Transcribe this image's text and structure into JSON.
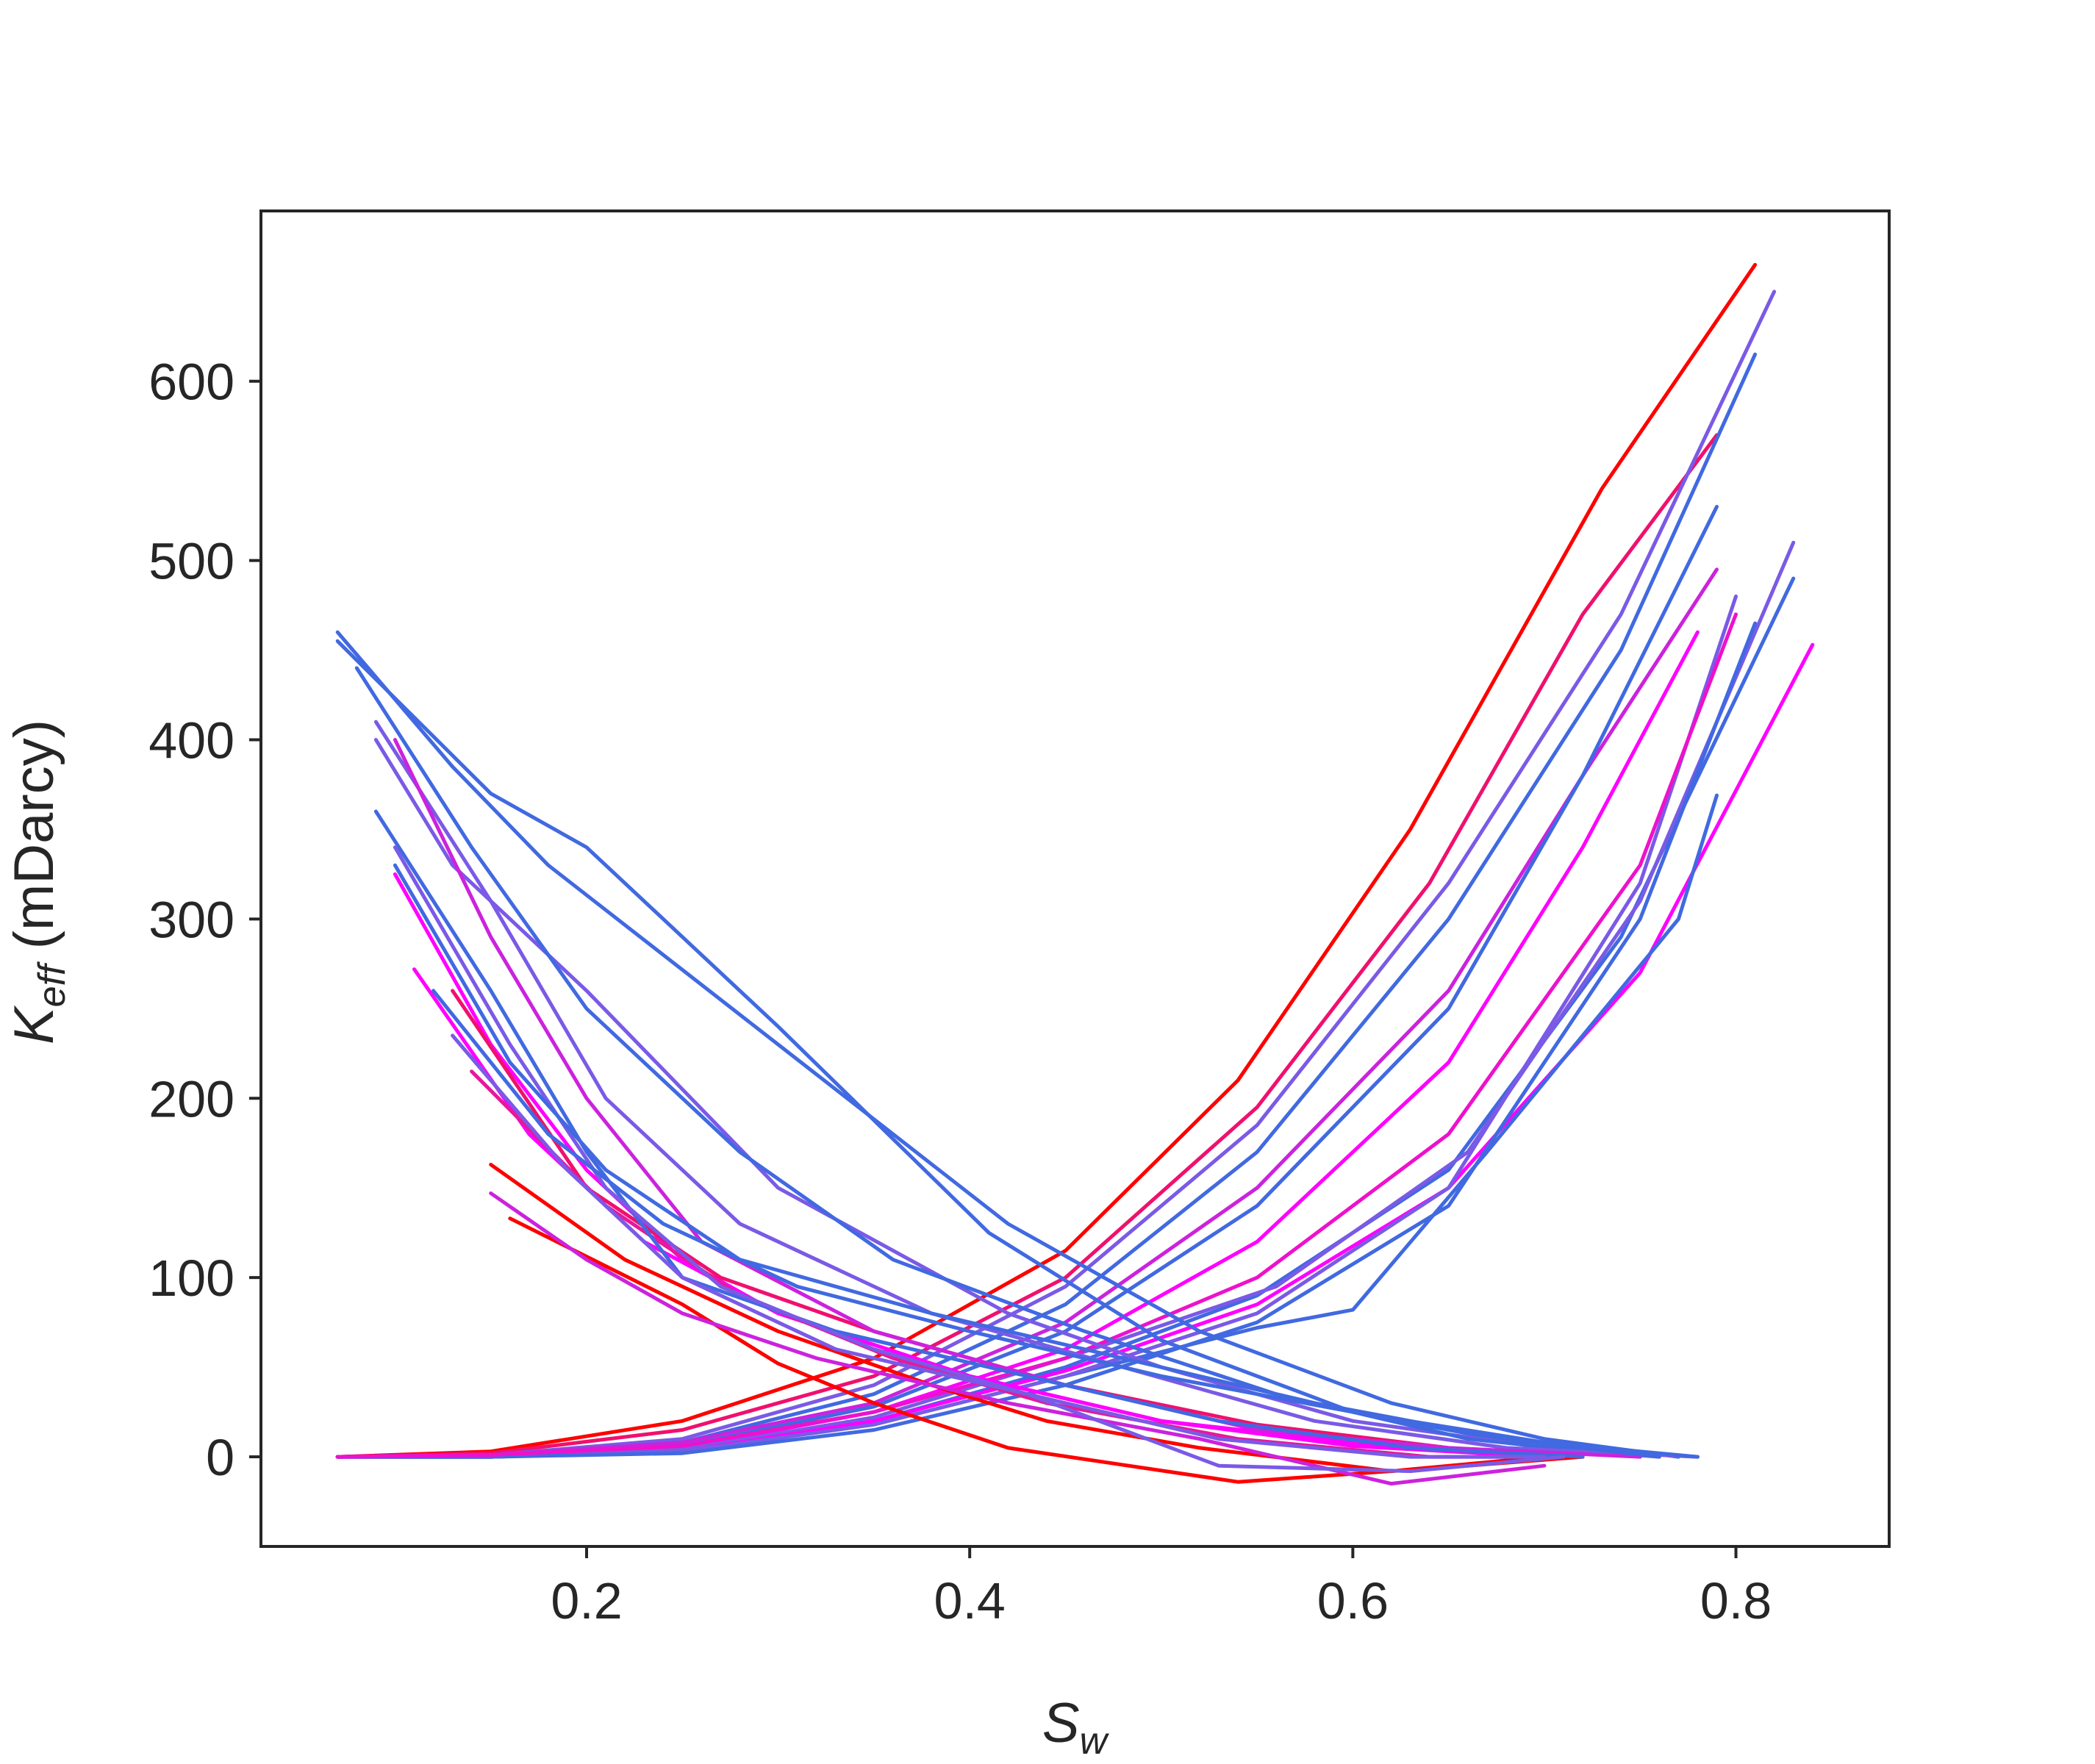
{
  "chart_data": {
    "type": "line",
    "title": "",
    "xlabel": {
      "main": "S",
      "sub": "w"
    },
    "ylabel": {
      "main": "K",
      "sub": "eff",
      "suffix": " (mDarcy)"
    },
    "xlim": [
      0.03,
      0.88
    ],
    "ylim": [
      -50,
      695
    ],
    "xticks": [
      0.2,
      0.4,
      0.6,
      0.8
    ],
    "xtick_labels": [
      "0.2",
      "0.4",
      "0.6",
      "0.8"
    ],
    "yticks": [
      0,
      100,
      200,
      300,
      400,
      500,
      600
    ],
    "ytick_labels": [
      "0",
      "100",
      "200",
      "300",
      "400",
      "500",
      "600"
    ],
    "grid": false,
    "legend": "none",
    "colors": {
      "red": "#ff0000",
      "magenta": "#ff00ff",
      "blue": "#4169e1",
      "violet": "#7a5ae6",
      "pink": "#e6199b",
      "axis": "#262626"
    },
    "series": [
      {
        "color": "#ff0000",
        "x": [
          0.07,
          0.15,
          0.25,
          0.35,
          0.45,
          0.54,
          0.63,
          0.73,
          0.81
        ],
        "y": [
          0,
          3,
          20,
          55,
          115,
          210,
          350,
          540,
          665
        ]
      },
      {
        "color": "#f0106e",
        "x": [
          0.07,
          0.15,
          0.25,
          0.35,
          0.45,
          0.55,
          0.64,
          0.72,
          0.79
        ],
        "y": [
          0,
          2,
          15,
          45,
          100,
          195,
          320,
          470,
          570
        ]
      },
      {
        "color": "#7a5ae6",
        "x": [
          0.07,
          0.15,
          0.25,
          0.35,
          0.45,
          0.55,
          0.65,
          0.74,
          0.82
        ],
        "y": [
          0,
          1,
          10,
          40,
          95,
          185,
          320,
          470,
          650
        ]
      },
      {
        "color": "#4169e1",
        "x": [
          0.07,
          0.15,
          0.25,
          0.35,
          0.45,
          0.55,
          0.65,
          0.74,
          0.81
        ],
        "y": [
          0,
          1,
          8,
          35,
          85,
          170,
          300,
          450,
          615
        ]
      },
      {
        "color": "#cc22dd",
        "x": [
          0.07,
          0.15,
          0.25,
          0.35,
          0.45,
          0.55,
          0.65,
          0.72,
          0.79
        ],
        "y": [
          0,
          1,
          8,
          30,
          75,
          150,
          260,
          380,
          495
        ]
      },
      {
        "color": "#4169e1",
        "x": [
          0.07,
          0.15,
          0.25,
          0.35,
          0.45,
          0.55,
          0.65,
          0.72,
          0.79
        ],
        "y": [
          0,
          1,
          6,
          28,
          70,
          140,
          250,
          380,
          530
        ]
      },
      {
        "color": "#ff00ff",
        "x": [
          0.07,
          0.15,
          0.25,
          0.35,
          0.45,
          0.55,
          0.65,
          0.72,
          0.78
        ],
        "y": [
          0,
          1,
          5,
          25,
          60,
          120,
          220,
          340,
          460
        ]
      },
      {
        "color": "#4169e1",
        "x": [
          0.07,
          0.15,
          0.25,
          0.35,
          0.45,
          0.55,
          0.65,
          0.74,
          0.83
        ],
        "y": [
          0,
          0,
          4,
          20,
          50,
          90,
          160,
          290,
          490
        ]
      },
      {
        "color": "#7a5ae6",
        "x": [
          0.07,
          0.15,
          0.25,
          0.35,
          0.45,
          0.56,
          0.66,
          0.75,
          0.83
        ],
        "y": [
          0,
          0,
          4,
          22,
          55,
          95,
          170,
          310,
          510
        ]
      },
      {
        "color": "#ff00ff",
        "x": [
          0.07,
          0.15,
          0.25,
          0.35,
          0.45,
          0.55,
          0.65,
          0.75,
          0.84
        ],
        "y": [
          0,
          0,
          3,
          20,
          48,
          85,
          150,
          270,
          453
        ]
      },
      {
        "color": "#4169e1",
        "x": [
          0.07,
          0.15,
          0.25,
          0.35,
          0.45,
          0.55,
          0.6,
          0.67,
          0.77,
          0.79
        ],
        "y": [
          0,
          0,
          3,
          18,
          45,
          72,
          82,
          170,
          300,
          369
        ]
      },
      {
        "color": "#7a5ae6",
        "x": [
          0.07,
          0.15,
          0.25,
          0.35,
          0.45,
          0.55,
          0.65,
          0.75,
          0.8
        ],
        "y": [
          0,
          0,
          3,
          18,
          45,
          80,
          150,
          320,
          480
        ]
      },
      {
        "color": "#4169e1",
        "x": [
          0.07,
          0.15,
          0.25,
          0.35,
          0.45,
          0.55,
          0.65,
          0.75,
          0.81
        ],
        "y": [
          0,
          0,
          2,
          15,
          40,
          75,
          140,
          300,
          465
        ]
      },
      {
        "color": "#ee11cc",
        "x": [
          0.07,
          0.15,
          0.25,
          0.35,
          0.45,
          0.55,
          0.65,
          0.75,
          0.8
        ],
        "y": [
          0,
          1,
          6,
          25,
          55,
          100,
          180,
          330,
          470
        ]
      },
      {
        "color": "#ff0000",
        "x": [
          0.16,
          0.25,
          0.3,
          0.35,
          0.42,
          0.54,
          0.66,
          0.72
        ],
        "y": [
          133,
          85,
          52,
          30,
          5,
          -14,
          -5,
          0
        ]
      },
      {
        "color": "#ff0000",
        "x": [
          0.15,
          0.22,
          0.3,
          0.38,
          0.44,
          0.52,
          0.62,
          0.7
        ],
        "y": [
          163,
          110,
          70,
          40,
          20,
          5,
          -8,
          0
        ]
      },
      {
        "color": "#ff00ff",
        "x": [
          0.1,
          0.15,
          0.2,
          0.25,
          0.3,
          0.4,
          0.5,
          0.6,
          0.7
        ],
        "y": [
          325,
          230,
          160,
          110,
          80,
          45,
          20,
          8,
          0
        ]
      },
      {
        "color": "#ff00ff",
        "x": [
          0.11,
          0.17,
          0.23,
          0.3,
          0.4,
          0.5,
          0.6,
          0.7
        ],
        "y": [
          272,
          180,
          120,
          80,
          45,
          20,
          6,
          0
        ]
      },
      {
        "color": "#f0106e",
        "x": [
          0.13,
          0.2,
          0.27,
          0.35,
          0.45,
          0.55,
          0.65,
          0.72
        ],
        "y": [
          260,
          150,
          100,
          70,
          40,
          18,
          5,
          0
        ]
      },
      {
        "color": "#e6199b",
        "x": [
          0.14,
          0.21,
          0.28,
          0.36,
          0.44,
          0.54,
          0.64,
          0.7
        ],
        "y": [
          215,
          140,
          90,
          55,
          30,
          10,
          0,
          0
        ]
      },
      {
        "color": "#4169e1",
        "x": [
          0.07,
          0.13,
          0.18,
          0.3,
          0.42,
          0.52,
          0.62,
          0.7,
          0.77
        ],
        "y": [
          460,
          385,
          330,
          230,
          130,
          70,
          30,
          10,
          0
        ]
      },
      {
        "color": "#4169e1",
        "x": [
          0.07,
          0.15,
          0.2,
          0.3,
          0.41,
          0.5,
          0.6,
          0.7,
          0.78
        ],
        "y": [
          455,
          370,
          340,
          240,
          125,
          65,
          25,
          5,
          0
        ]
      },
      {
        "color": "#7a5ae6",
        "x": [
          0.09,
          0.13,
          0.2,
          0.3,
          0.42,
          0.5,
          0.6,
          0.7,
          0.76
        ],
        "y": [
          400,
          330,
          260,
          150,
          80,
          50,
          20,
          5,
          0
        ]
      },
      {
        "color": "#4169e1",
        "x": [
          0.08,
          0.14,
          0.2,
          0.28,
          0.36,
          0.46,
          0.56,
          0.66,
          0.75
        ],
        "y": [
          440,
          340,
          250,
          170,
          110,
          70,
          35,
          10,
          0
        ]
      },
      {
        "color": "#7a5ae6",
        "x": [
          0.09,
          0.15,
          0.21,
          0.28,
          0.38,
          0.48,
          0.58,
          0.68,
          0.78
        ],
        "y": [
          410,
          310,
          200,
          130,
          80,
          50,
          20,
          5,
          0
        ]
      },
      {
        "color": "#cc22dd",
        "x": [
          0.1,
          0.15,
          0.2,
          0.26,
          0.35,
          0.45,
          0.55,
          0.65,
          0.75
        ],
        "y": [
          400,
          290,
          200,
          120,
          70,
          40,
          15,
          5,
          0
        ]
      },
      {
        "color": "#4169e1",
        "x": [
          0.09,
          0.15,
          0.2,
          0.25,
          0.33,
          0.43,
          0.53,
          0.63,
          0.72
        ],
        "y": [
          360,
          260,
          170,
          100,
          70,
          45,
          20,
          5,
          0
        ]
      },
      {
        "color": "#7a5ae6",
        "x": [
          0.1,
          0.16,
          0.21,
          0.27,
          0.35,
          0.43,
          0.53,
          0.63,
          0.7
        ],
        "y": [
          340,
          230,
          150,
          95,
          60,
          35,
          10,
          0,
          0
        ]
      },
      {
        "color": "#4169e1",
        "x": [
          0.1,
          0.16,
          0.21,
          0.28,
          0.38,
          0.48,
          0.58,
          0.68,
          0.76
        ],
        "y": [
          330,
          220,
          160,
          110,
          80,
          55,
          30,
          10,
          0
        ]
      },
      {
        "color": "#cc22dd",
        "x": [
          0.15,
          0.2,
          0.25,
          0.32,
          0.42,
          0.52,
          0.62,
          0.7
        ],
        "y": [
          147,
          110,
          80,
          55,
          30,
          10,
          -15,
          -5
        ]
      },
      {
        "color": "#4169e1",
        "x": [
          0.12,
          0.18,
          0.24,
          0.31,
          0.4,
          0.5,
          0.6,
          0.7,
          0.78
        ],
        "y": [
          260,
          180,
          130,
          95,
          70,
          45,
          25,
          8,
          0
        ]
      },
      {
        "color": "#7a5ae6",
        "x": [
          0.13,
          0.19,
          0.25,
          0.33,
          0.43,
          0.53,
          0.63,
          0.71
        ],
        "y": [
          235,
          160,
          100,
          60,
          35,
          -5,
          -8,
          0
        ]
      }
    ]
  }
}
